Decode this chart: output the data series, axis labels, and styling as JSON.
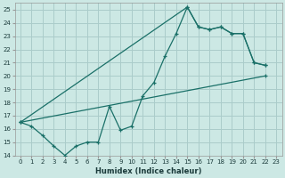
{
  "bg_color": "#cce8e4",
  "grid_color": "#aaccca",
  "line_color": "#1a7068",
  "xlabel": "Humidex (Indice chaleur)",
  "curve1_x": [
    0,
    1,
    2,
    3,
    4,
    5,
    6,
    7,
    8,
    9,
    10,
    11,
    12,
    13,
    14,
    15,
    16,
    17,
    18,
    19,
    20,
    21,
    22
  ],
  "curve1_y": [
    16.5,
    16.2,
    15.5,
    14.7,
    14.0,
    14.7,
    15.0,
    15.0,
    17.7,
    15.9,
    16.2,
    18.5,
    19.5,
    21.5,
    23.2,
    25.2,
    23.7,
    23.5,
    23.7,
    23.2,
    23.2,
    21.0,
    20.8
  ],
  "curve2_x": [
    0,
    15,
    16,
    17,
    18,
    19,
    20,
    21,
    22
  ],
  "curve2_y": [
    16.5,
    25.2,
    23.7,
    23.5,
    23.7,
    23.2,
    23.2,
    21.0,
    20.8
  ],
  "curve3_x": [
    0,
    22
  ],
  "curve3_y": [
    16.5,
    20.0
  ],
  "xlim": [
    -0.5,
    23.5
  ],
  "ylim": [
    14,
    25.5
  ],
  "xticks": [
    0,
    1,
    2,
    3,
    4,
    5,
    6,
    7,
    8,
    9,
    10,
    11,
    12,
    13,
    14,
    15,
    16,
    17,
    18,
    19,
    20,
    21,
    22,
    23
  ],
  "yticks": [
    14,
    15,
    16,
    17,
    18,
    19,
    20,
    21,
    22,
    23,
    24,
    25
  ],
  "xlabel_fontsize": 6,
  "tick_fontsize": 5
}
